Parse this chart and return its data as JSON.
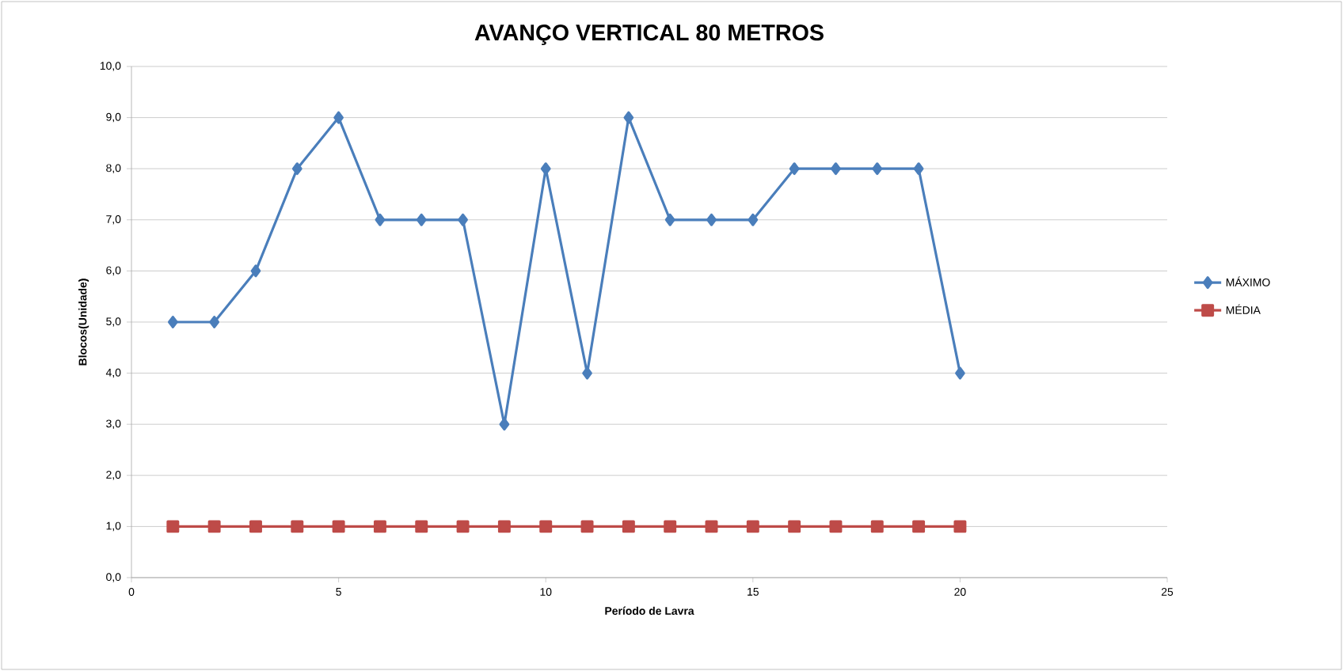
{
  "chart_data": {
    "type": "line",
    "title": "AVANÇO VERTICAL 80 METROS",
    "xlabel": "Período de Lavra",
    "ylabel": "Blocos(Unidade)",
    "x": [
      1,
      2,
      3,
      4,
      5,
      6,
      7,
      8,
      9,
      10,
      11,
      12,
      13,
      14,
      15,
      16,
      17,
      18,
      19,
      20
    ],
    "series": [
      {
        "name": "MÁXIMO",
        "color": "#4a7ebb",
        "marker": "diamond",
        "values": [
          5,
          5,
          6,
          8,
          9,
          7,
          7,
          7,
          3,
          8,
          4,
          9,
          7,
          7,
          7,
          8,
          8,
          8,
          8,
          4
        ]
      },
      {
        "name": "MÉDIA",
        "color": "#be4b48",
        "marker": "square",
        "values": [
          1,
          1,
          1,
          1,
          1,
          1,
          1,
          1,
          1,
          1,
          1,
          1,
          1,
          1,
          1,
          1,
          1,
          1,
          1,
          1
        ]
      }
    ],
    "xlim": [
      0,
      25
    ],
    "xticks": [
      0,
      5,
      10,
      15,
      20,
      25
    ],
    "ylim": [
      0,
      10
    ],
    "yticks": [
      {
        "value": 0,
        "label": "0,0"
      },
      {
        "value": 1,
        "label": "1,0"
      },
      {
        "value": 2,
        "label": "2,0"
      },
      {
        "value": 3,
        "label": "3,0"
      },
      {
        "value": 4,
        "label": "4,0"
      },
      {
        "value": 5,
        "label": "5,0"
      },
      {
        "value": 6,
        "label": "6,0"
      },
      {
        "value": 7,
        "label": "7,0"
      },
      {
        "value": 8,
        "label": "8,0"
      },
      {
        "value": 9,
        "label": "9,0"
      },
      {
        "value": 10,
        "label": "10,0"
      }
    ],
    "grid": "y",
    "legend": "right",
    "line_style": "solid"
  }
}
